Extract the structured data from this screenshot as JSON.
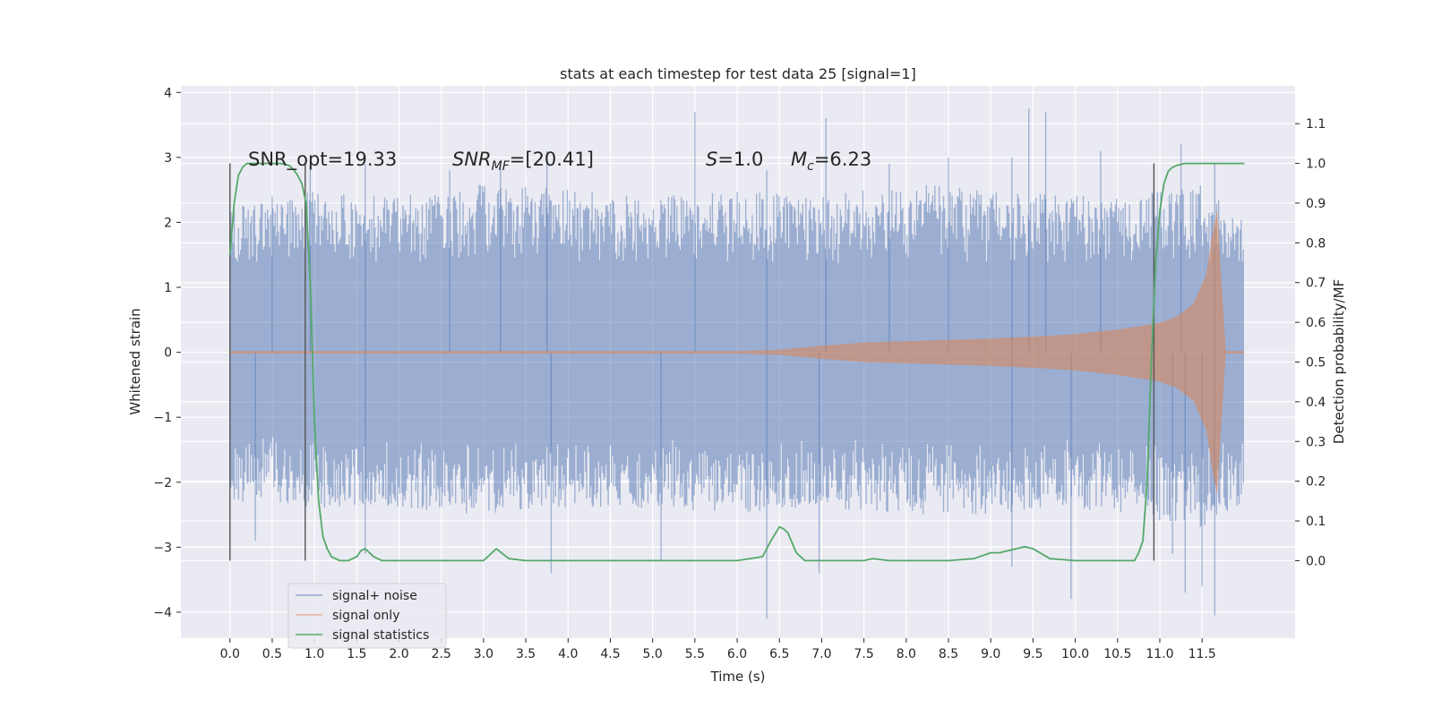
{
  "chart_data": {
    "type": "line",
    "title": "stats at each timestep for test data 25 [signal=1]",
    "xlabel": "Time (s)",
    "ylabel": "Whitened strain",
    "y2label": "Detection probability/MF",
    "xlim": [
      -0.58,
      12.6
    ],
    "ylim": [
      -4.4,
      4.1
    ],
    "y2lim": [
      -0.195,
      1.195
    ],
    "x_ticks": [
      "0.0",
      "0.5",
      "1.0",
      "1.5",
      "2.0",
      "2.5",
      "3.0",
      "3.5",
      "4.0",
      "4.5",
      "5.0",
      "5.5",
      "6.0",
      "6.5",
      "7.0",
      "7.5",
      "8.0",
      "8.5",
      "9.0",
      "9.5",
      "10.0",
      "10.5",
      "11.0",
      "11.5"
    ],
    "y_ticks": [
      "4",
      "3",
      "2",
      "1",
      "0",
      "−1",
      "−2",
      "−3",
      "−4"
    ],
    "y2_ticks": [
      "1.1",
      "1.0",
      "0.9",
      "0.8",
      "0.7",
      "0.6",
      "0.5",
      "0.4",
      "0.3",
      "0.2",
      "0.1",
      "0.0"
    ],
    "grid": true,
    "legend_position": "lower-left",
    "annotations": {
      "snr_opt": "SNR_opt=19.33",
      "snr_mf": "SNR",
      "snr_mf_sub": "MF",
      "snr_mf_val": "=[20.41]",
      "s": "S",
      "s_val": "=1.0",
      "mc": "M",
      "mc_sub": "c",
      "mc_val": "=6.23"
    },
    "vertical_markers": [
      0.0,
      0.89,
      10.93
    ],
    "series": [
      {
        "name": "signal+ noise",
        "color": "#4c72b0",
        "x_range": [
          0.0,
          12.0
        ],
        "envelope_upper": [
          [
            0.0,
            2.3
          ],
          [
            0.5,
            2.3
          ],
          [
            1.0,
            2.5
          ],
          [
            2.0,
            2.4
          ],
          [
            3.0,
            2.6
          ],
          [
            4.0,
            2.5
          ],
          [
            5.0,
            2.4
          ],
          [
            6.0,
            2.5
          ],
          [
            7.0,
            2.4
          ],
          [
            8.0,
            2.6
          ],
          [
            9.0,
            2.5
          ],
          [
            10.0,
            2.4
          ],
          [
            11.0,
            2.5
          ],
          [
            11.5,
            2.6
          ],
          [
            12.0,
            2.0
          ]
        ],
        "envelope_lower": [
          [
            0.0,
            -2.3
          ],
          [
            0.5,
            -2.3
          ],
          [
            1.0,
            -2.4
          ],
          [
            2.0,
            -2.4
          ],
          [
            3.0,
            -2.5
          ],
          [
            4.0,
            -2.4
          ],
          [
            5.0,
            -2.4
          ],
          [
            6.0,
            -2.5
          ],
          [
            7.0,
            -2.4
          ],
          [
            8.0,
            -2.5
          ],
          [
            9.0,
            -2.5
          ],
          [
            10.0,
            -2.4
          ],
          [
            11.0,
            -2.6
          ],
          [
            11.5,
            -2.7
          ],
          [
            12.0,
            -2.3
          ]
        ],
        "peaks": [
          [
            0.5,
            2.4
          ],
          [
            0.95,
            2.9
          ],
          [
            1.6,
            2.9
          ],
          [
            2.6,
            2.8
          ],
          [
            3.2,
            2.9
          ],
          [
            3.75,
            3.1
          ],
          [
            5.5,
            3.7
          ],
          [
            6.35,
            2.8
          ],
          [
            7.05,
            3.6
          ],
          [
            7.8,
            2.9
          ],
          [
            8.5,
            3.0
          ],
          [
            9.25,
            3.0
          ],
          [
            9.45,
            3.75
          ],
          [
            9.65,
            3.7
          ],
          [
            10.3,
            3.1
          ],
          [
            11.25,
            3.2
          ],
          [
            11.65,
            2.9
          ],
          [
            0.3,
            -2.9
          ],
          [
            1.6,
            -3.1
          ],
          [
            3.8,
            -3.4
          ],
          [
            5.1,
            -3.2
          ],
          [
            6.35,
            -4.1
          ],
          [
            6.97,
            -3.4
          ],
          [
            9.25,
            -3.3
          ],
          [
            9.95,
            -3.8
          ],
          [
            11.15,
            -3.1
          ],
          [
            11.3,
            -3.7
          ],
          [
            11.5,
            -3.6
          ],
          [
            11.65,
            -4.05
          ]
        ]
      },
      {
        "name": "signal only",
        "color": "#dd8452",
        "x": [
          0.0,
          6.0,
          6.5,
          7.0,
          7.5,
          8.0,
          8.5,
          9.0,
          9.5,
          10.0,
          10.5,
          11.0,
          11.2,
          11.4,
          11.55,
          11.62,
          11.68,
          11.72,
          11.78,
          12.0
        ],
        "amplitude": [
          0.02,
          0.02,
          0.04,
          0.1,
          0.15,
          0.17,
          0.19,
          0.21,
          0.24,
          0.28,
          0.35,
          0.45,
          0.55,
          0.75,
          1.2,
          1.8,
          2.2,
          1.3,
          0.02,
          0.02
        ]
      },
      {
        "name": "signal statistics",
        "color": "#55a868",
        "x": [
          0.0,
          0.05,
          0.1,
          0.15,
          0.2,
          0.25,
          0.3,
          0.45,
          0.6,
          0.7,
          0.75,
          0.8,
          0.85,
          0.9,
          0.95,
          1.0,
          1.05,
          1.1,
          1.15,
          1.2,
          1.3,
          1.4,
          1.5,
          1.55,
          1.6,
          1.7,
          1.8,
          2.0,
          2.5,
          3.0,
          3.15,
          3.3,
          3.5,
          4.0,
          5.0,
          6.0,
          6.3,
          6.4,
          6.5,
          6.55,
          6.6,
          6.7,
          6.8,
          7.0,
          7.5,
          7.6,
          7.8,
          8.0,
          8.5,
          8.8,
          9.0,
          9.1,
          9.3,
          9.4,
          9.5,
          9.7,
          10.0,
          10.2,
          10.5,
          10.7,
          10.75,
          10.8,
          10.85,
          10.9,
          10.95,
          11.0,
          11.05,
          11.1,
          11.15,
          11.2,
          11.3,
          11.5,
          11.7,
          12.0
        ],
        "y": [
          0.77,
          0.9,
          0.97,
          0.99,
          1.0,
          1.0,
          1.0,
          1.0,
          1.0,
          0.995,
          0.985,
          0.97,
          0.95,
          0.9,
          0.7,
          0.35,
          0.15,
          0.06,
          0.03,
          0.01,
          0.0,
          0.0,
          0.01,
          0.025,
          0.03,
          0.01,
          0.0,
          0.0,
          0.0,
          0.0,
          0.03,
          0.005,
          0.0,
          0.0,
          0.0,
          0.0,
          0.01,
          0.05,
          0.085,
          0.08,
          0.07,
          0.02,
          0.0,
          0.0,
          0.0,
          0.005,
          0.0,
          0.0,
          0.0,
          0.005,
          0.02,
          0.02,
          0.03,
          0.035,
          0.03,
          0.005,
          0.0,
          0.0,
          0.0,
          0.0,
          0.02,
          0.05,
          0.2,
          0.5,
          0.75,
          0.88,
          0.95,
          0.98,
          0.99,
          0.995,
          1.0,
          1.0,
          1.0,
          1.0
        ]
      }
    ]
  }
}
